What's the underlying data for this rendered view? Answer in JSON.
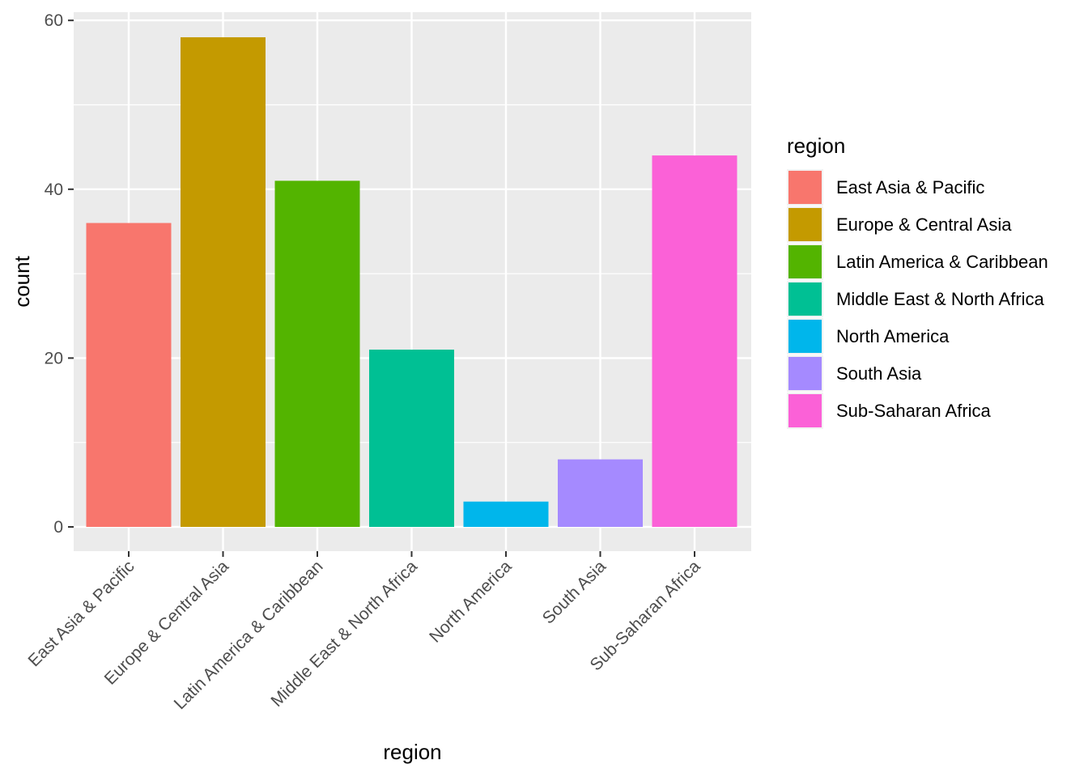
{
  "chart_data": {
    "type": "bar",
    "categories": [
      "East Asia & Pacific",
      "Europe & Central Asia",
      "Latin America & Caribbean",
      "Middle East & North Africa",
      "North America",
      "South Asia",
      "Sub-Saharan Africa"
    ],
    "values": [
      36,
      58,
      41,
      21,
      3,
      8,
      44
    ],
    "colors": [
      "#F8766D",
      "#C49A00",
      "#53B400",
      "#00C094",
      "#00B6EB",
      "#A58AFF",
      "#FB61D7"
    ],
    "xlabel": "region",
    "ylabel": "count",
    "ylim": [
      -3,
      61
    ],
    "yticks": [
      0,
      20,
      40,
      60
    ],
    "ytick_labels": [
      "0",
      "20",
      "40",
      "60"
    ],
    "legend": {
      "title": "region",
      "placement": "right",
      "entries": [
        "East Asia & Pacific",
        "Europe & Central Asia",
        "Latin America & Caribbean",
        "Middle East & North Africa",
        "North America",
        "South Asia",
        "Sub-Saharan Africa"
      ]
    },
    "grid": true,
    "panel_background": "#EBEBEB",
    "grid_color": "#FFFFFF"
  }
}
